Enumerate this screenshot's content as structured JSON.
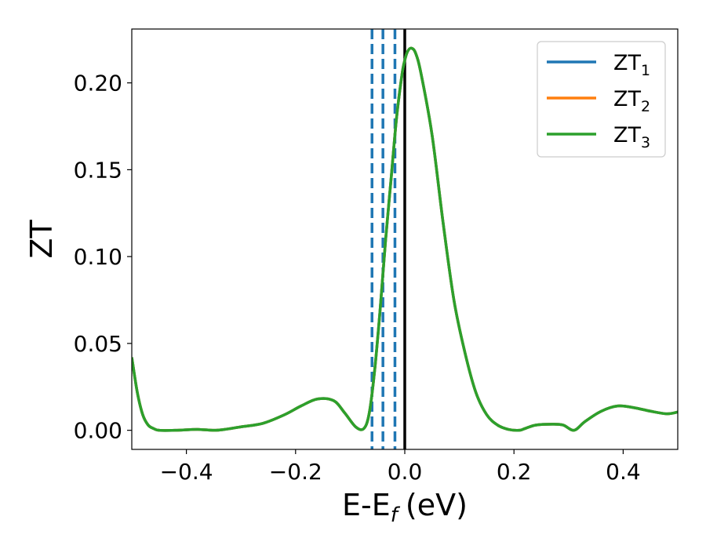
{
  "chart_data": {
    "type": "line",
    "xlabel": "E-E",
    "xlabel_sub": "f",
    "xlabel_unit": "(eV)",
    "ylabel": "ZT",
    "xlim": [
      -0.5,
      0.5
    ],
    "ylim": [
      -0.011,
      0.231
    ],
    "x_ticks": [
      -0.4,
      -0.2,
      0.0,
      0.2,
      0.4
    ],
    "x_tick_labels": [
      "−0.4",
      "−0.2",
      "0.0",
      "0.2",
      "0.4"
    ],
    "y_ticks": [
      0.0,
      0.05,
      0.1,
      0.15,
      0.2
    ],
    "y_tick_labels": [
      "0.00",
      "0.05",
      "0.10",
      "0.15",
      "0.20"
    ],
    "grid": false,
    "legend_position": "top-right",
    "series": [
      {
        "name": "ZT",
        "sub": "1",
        "color": "#1f77b4"
      },
      {
        "name": "ZT",
        "sub": "2",
        "color": "#ff7f0e"
      },
      {
        "name": "ZT",
        "sub": "3",
        "color": "#2ca02c"
      }
    ],
    "x": [
      -0.5,
      -0.49,
      -0.48,
      -0.47,
      -0.46,
      -0.45,
      -0.42,
      -0.38,
      -0.35,
      -0.33,
      -0.3,
      -0.26,
      -0.22,
      -0.19,
      -0.16,
      -0.13,
      -0.11,
      -0.09,
      -0.075,
      -0.065,
      -0.055,
      -0.045,
      -0.035,
      -0.025,
      -0.015,
      -0.005,
      0.0,
      0.005,
      0.012,
      0.02,
      0.03,
      0.05,
      0.07,
      0.09,
      0.11,
      0.13,
      0.15,
      0.17,
      0.19,
      0.21,
      0.22,
      0.24,
      0.27,
      0.29,
      0.31,
      0.33,
      0.36,
      0.39,
      0.42,
      0.45,
      0.48,
      0.5
    ],
    "values": [
      0.042,
      0.022,
      0.009,
      0.003,
      0.001,
      0.0,
      0.0,
      0.0005,
      0.0,
      0.0005,
      0.002,
      0.004,
      0.009,
      0.014,
      0.018,
      0.017,
      0.01,
      0.002,
      0.001,
      0.01,
      0.035,
      0.07,
      0.11,
      0.145,
      0.18,
      0.205,
      0.213,
      0.218,
      0.22,
      0.217,
      0.205,
      0.17,
      0.12,
      0.075,
      0.045,
      0.022,
      0.009,
      0.003,
      0.0005,
      0.0,
      0.001,
      0.003,
      0.0035,
      0.003,
      0.0,
      0.005,
      0.011,
      0.014,
      0.013,
      0.011,
      0.0095,
      0.0105
    ],
    "vlines_dashed": {
      "x": [
        -0.06,
        -0.04,
        -0.018
      ],
      "color": "#1f77b4"
    },
    "vline_solid": {
      "x": 0.0,
      "color": "#000000"
    }
  }
}
